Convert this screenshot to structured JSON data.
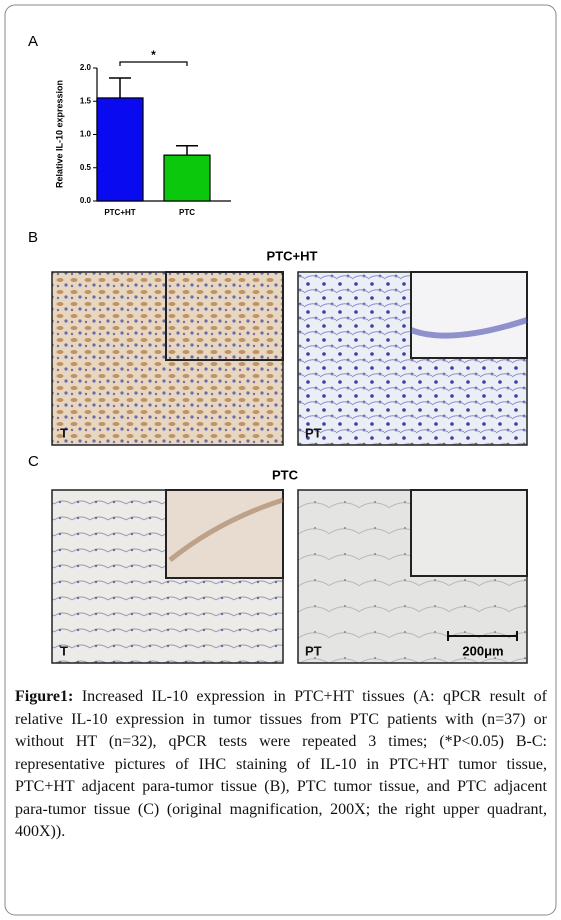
{
  "chart_data": {
    "type": "bar",
    "ylabel": "Relative IL-10 expression",
    "categories": [
      "PTC+HT",
      "PTC"
    ],
    "values": [
      1.55,
      0.69
    ],
    "errors": [
      0.3,
      0.14
    ],
    "colors": [
      "#0a0af0",
      "#0cc80c"
    ],
    "ylim": [
      0,
      2
    ],
    "yticks": [
      {
        "value": 0,
        "label": "0.0"
      },
      {
        "value": 0.5,
        "label": "0.5"
      },
      {
        "value": 1,
        "label": "1.0"
      },
      {
        "value": 1.5,
        "label": "1.5"
      },
      {
        "value": 2,
        "label": "2.0"
      }
    ],
    "annotation": "*"
  },
  "panels": {
    "a": {
      "label": "A"
    },
    "b": {
      "label": "B",
      "title": "PTC+HT",
      "images": [
        {
          "label": "T"
        },
        {
          "label": "PT"
        }
      ]
    },
    "c": {
      "label": "C",
      "title": "PTC",
      "images": [
        {
          "label": "T"
        },
        {
          "label": "PT"
        }
      ],
      "scale_bar": "200μm"
    }
  },
  "caption": {
    "lead": "Figure1:",
    "text": "Increased IL-10 expression in PTC+HT tissues (A: qPCR result of relative IL-10 expression in tumor tissues from PTC patients with (n=37) or without HT (n=32), qPCR tests were repeated 3 times; (*P<0.05) B-C: representative pictures of IHC staining of IL-10 in PTC+HT tumor tissue, PTC+HT adjacent para-tumor tissue (B), PTC tumor tissue, and PTC adjacent para-tumor tissue (C) (original magnification, 200X; the right upper quadrant, 400X))."
  }
}
